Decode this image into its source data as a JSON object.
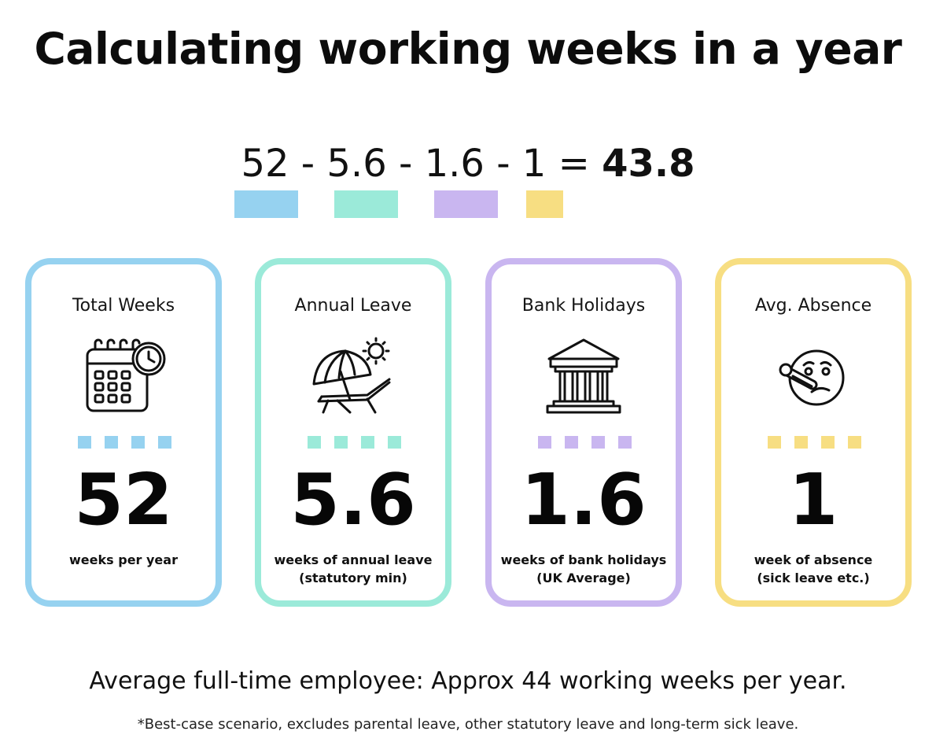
{
  "title": "Calculating working weeks in a year",
  "equation": {
    "terms": [
      "52",
      "5.6",
      "1.6",
      "1"
    ],
    "minus": "-",
    "equals": "=",
    "result": "43.8"
  },
  "colors": {
    "blue": "#96d2f0",
    "teal": "#9bead9",
    "purple": "#c9b6f0",
    "yellow": "#f7de82"
  },
  "cards": [
    {
      "label": "Total Weeks",
      "icon": "calendar-clock-icon",
      "value": "52",
      "sub_line1": "weeks per year",
      "sub_line2": "",
      "color": "#96d2f0"
    },
    {
      "label": "Annual Leave",
      "icon": "beach-umbrella-lounger-icon",
      "value": "5.6",
      "sub_line1": "weeks of annual leave",
      "sub_line2": "(statutory min)",
      "color": "#9bead9"
    },
    {
      "label": "Bank Holidays",
      "icon": "bank-building-icon",
      "value": "1.6",
      "sub_line1": "weeks of bank holidays",
      "sub_line2": "(UK Average)",
      "color": "#c9b6f0"
    },
    {
      "label": "Avg. Absence",
      "icon": "sick-face-thermometer-icon",
      "value": "1",
      "sub_line1": "week of absence",
      "sub_line2": "(sick leave etc.)",
      "color": "#f7de82"
    }
  ],
  "summary": "Average full-time employee: Approx 44 working weeks per year.",
  "footnote": "*Best-case scenario, excludes parental leave, other statutory leave and long-term sick leave."
}
